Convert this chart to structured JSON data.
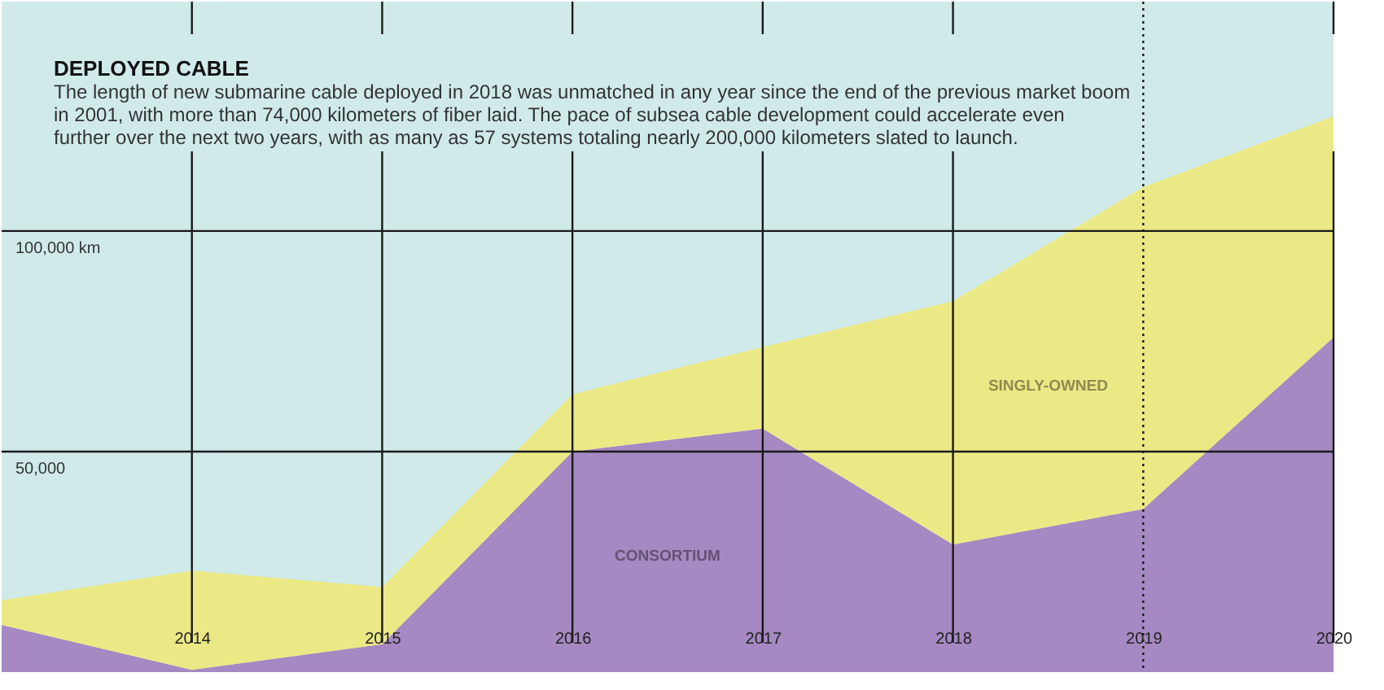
{
  "chart_data": {
    "type": "area",
    "stacked": true,
    "title": "DEPLOYED CABLE",
    "subtitle": "The length of new submarine cable deployed in 2018 was unmatched in any year since the end of the previous market boom\n in 2001, with more than 74,000 kilometers of fiber laid. The pace of subsea cable development could accelerate even\nfurther over the next two years, with as many as 57 systems totaling nearly 200,000 kilometers slated to launch.",
    "x": [
      2013,
      2014,
      2015,
      2016,
      2017,
      2018,
      2019,
      2020
    ],
    "series": [
      {
        "name": "CONSORTIUM",
        "color": "#a688c2",
        "values": [
          10700,
          500,
          6300,
          50000,
          55200,
          28900,
          37000,
          75900
        ]
      },
      {
        "name": "SINGLY-OWNED",
        "color": "#ebe985",
        "values": [
          5600,
          22500,
          13000,
          13000,
          18500,
          55200,
          73000,
          50100
        ]
      }
    ],
    "xlim": [
      2013,
      2020
    ],
    "xticks": [
      2014,
      2015,
      2016,
      2017,
      2018,
      2019,
      2020
    ],
    "ylim": [
      0,
      152000
    ],
    "yticks": [
      {
        "value": 50000,
        "label": "50,000"
      },
      {
        "value": 100000,
        "label": "100,000 km"
      }
    ],
    "grid": true,
    "legend": false,
    "ref_lines": [
      {
        "axis": "x",
        "value": 2019,
        "line_style": "dotted"
      }
    ]
  }
}
